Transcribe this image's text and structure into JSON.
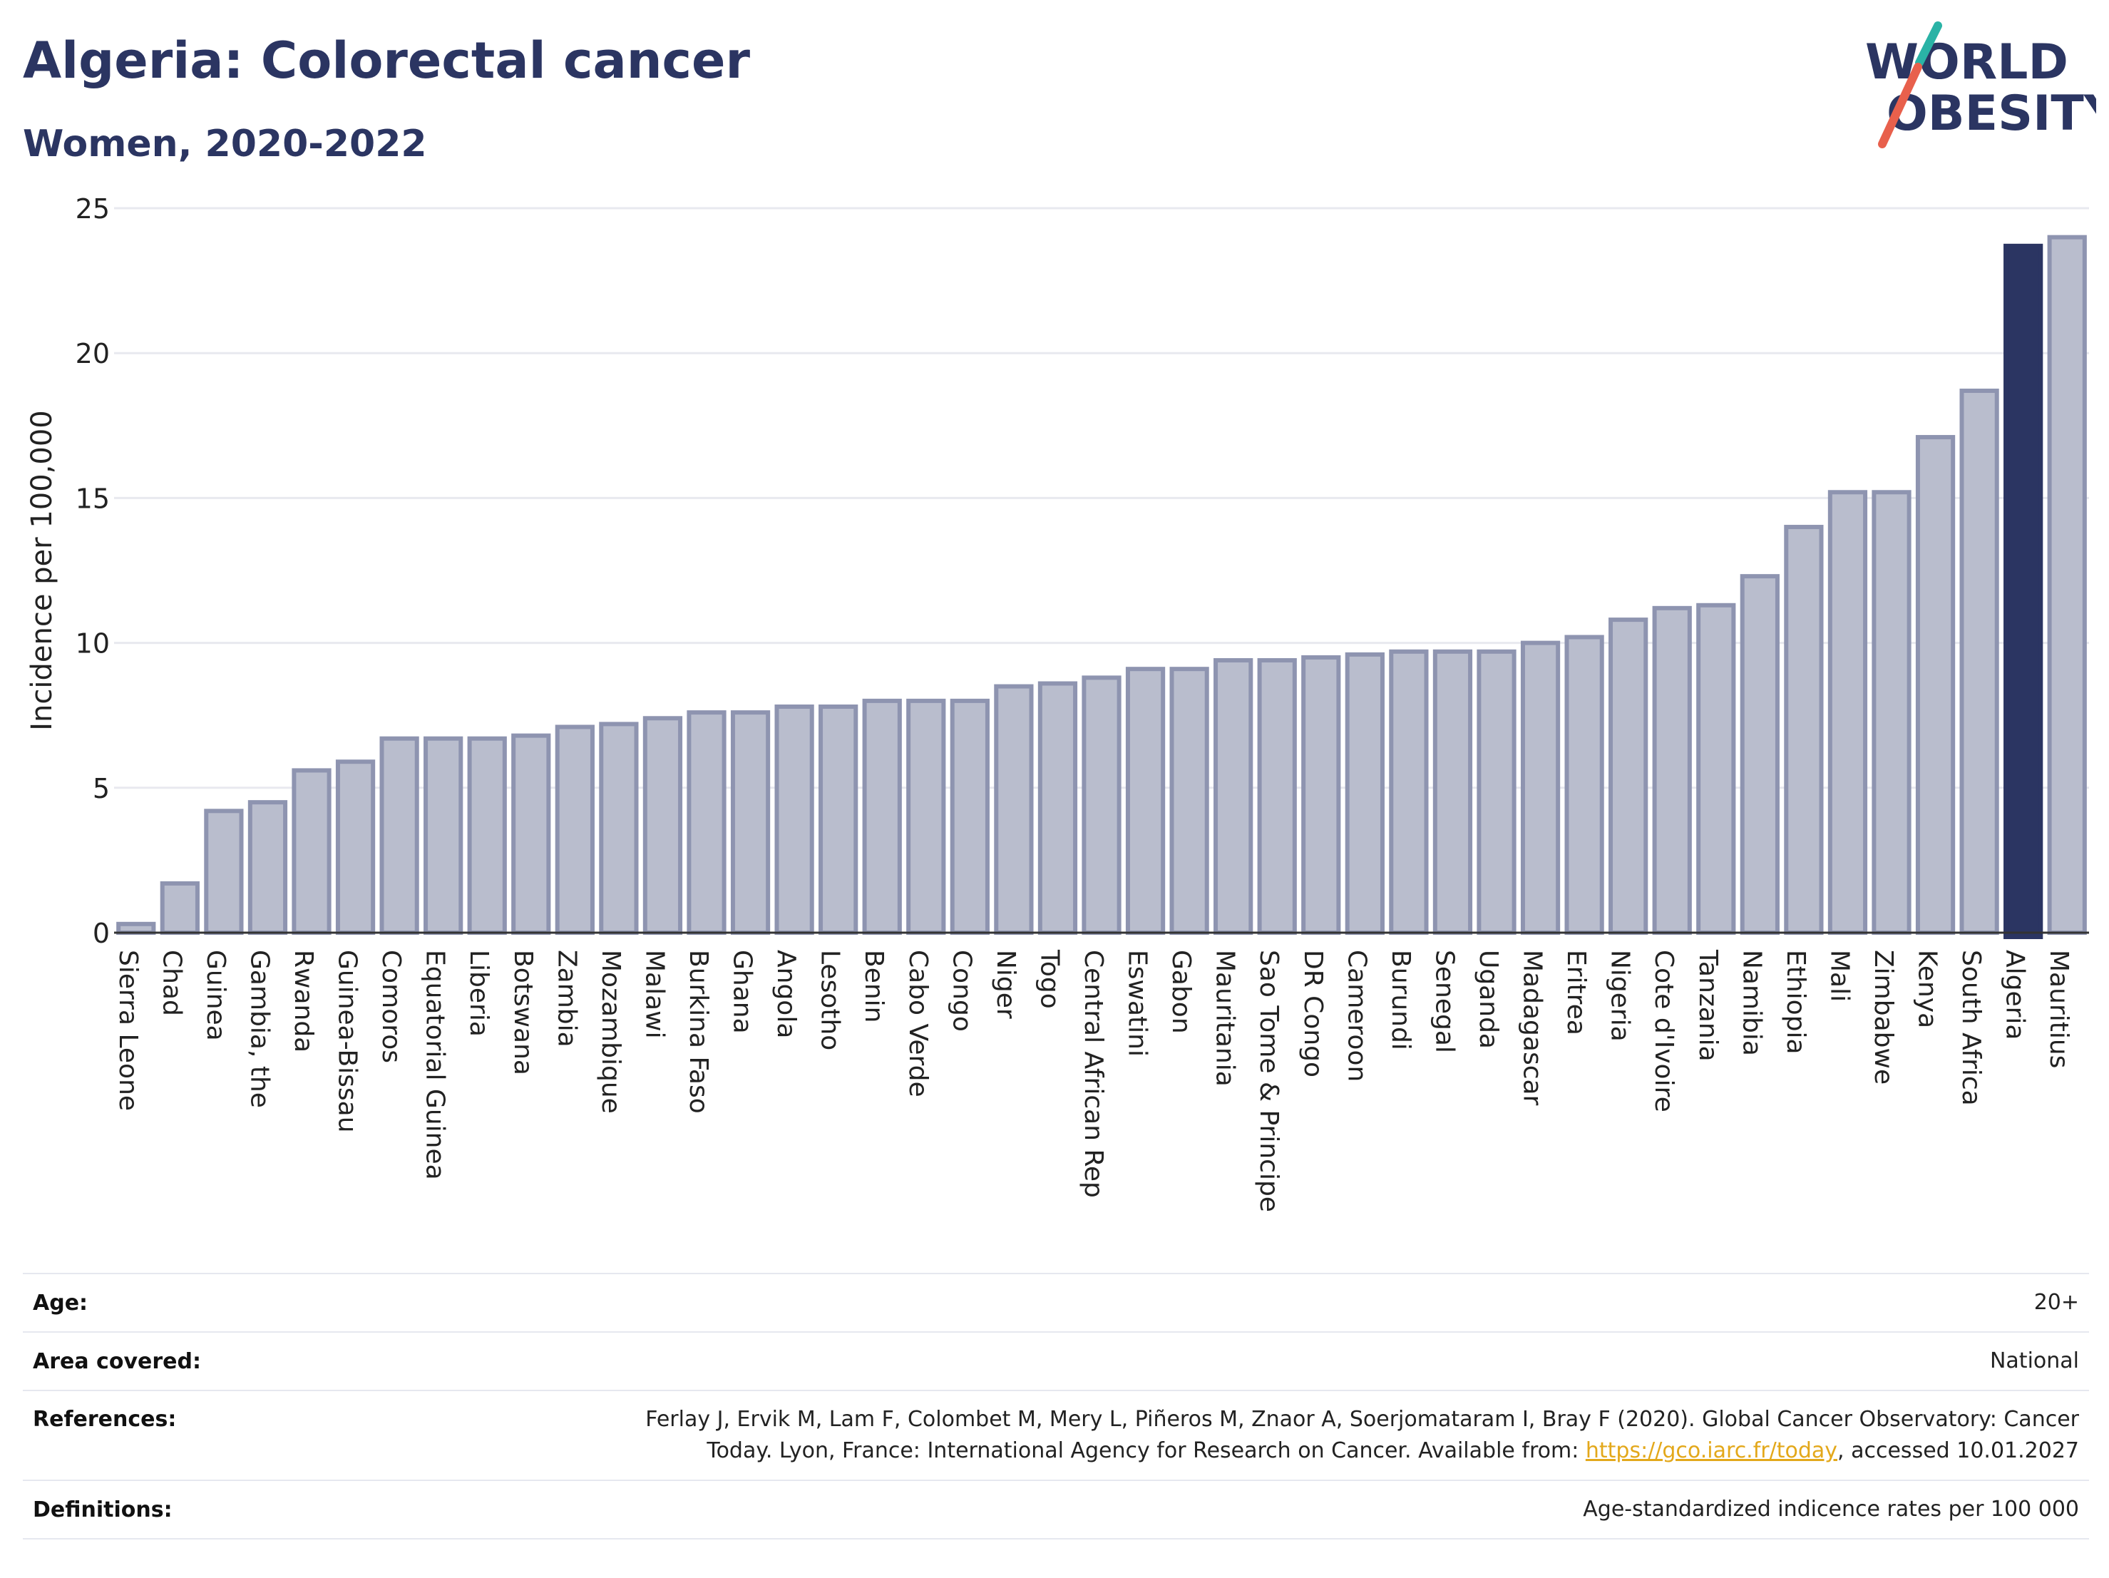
{
  "header": {
    "title": "Algeria: Colorectal cancer",
    "subtitle": "Women, 2020-2022"
  },
  "logo": {
    "line1": "WORLD",
    "line2": "OBESITY",
    "accent_teal": "#2ab3a6",
    "accent_red": "#e8604c"
  },
  "colors": {
    "highlight": "#2b3562",
    "bar_fill": "#b9bdcd",
    "bar_stroke": "#8e94b0",
    "grid": "#e8e9ef"
  },
  "chart_data": {
    "type": "bar",
    "title": "Algeria: Colorectal cancer",
    "subtitle": "Women, 2020-2022",
    "ylabel": "Incidence per 100,000",
    "xlabel": "",
    "ylim": [
      0,
      25
    ],
    "yticks": [
      0,
      5,
      10,
      15,
      20,
      25
    ],
    "grid": true,
    "highlight": "Algeria",
    "categories": [
      "Sierra Leone",
      "Chad",
      "Guinea",
      "Gambia, the",
      "Rwanda",
      "Guinea-Bissau",
      "Comoros",
      "Equatorial Guinea",
      "Liberia",
      "Botswana",
      "Zambia",
      "Mozambique",
      "Malawi",
      "Burkina Faso",
      "Ghana",
      "Angola",
      "Lesotho",
      "Benin",
      "Cabo Verde",
      "Congo",
      "Niger",
      "Togo",
      "Central African Rep",
      "Eswatini",
      "Gabon",
      "Mauritania",
      "Sao Tome & Principe",
      "DR Congo",
      "Cameroon",
      "Burundi",
      "Senegal",
      "Uganda",
      "Madagascar",
      "Eritrea",
      "Nigeria",
      "Cote d'Ivoire",
      "Tanzania",
      "Namibia",
      "Ethiopia",
      "Mali",
      "Zimbabwe",
      "Kenya",
      "South Africa",
      "Algeria",
      "Mauritius"
    ],
    "values": [
      0.3,
      1.7,
      4.2,
      4.5,
      5.6,
      5.9,
      6.7,
      6.7,
      6.7,
      6.8,
      7.1,
      7.2,
      7.4,
      7.6,
      7.6,
      7.8,
      7.8,
      8.0,
      8.0,
      8.0,
      8.5,
      8.6,
      8.8,
      9.1,
      9.1,
      9.4,
      9.4,
      9.5,
      9.6,
      9.7,
      9.7,
      9.7,
      10.0,
      10.2,
      10.8,
      11.2,
      11.3,
      12.3,
      14.0,
      15.2,
      15.2,
      17.1,
      18.7,
      23.7,
      24.0
    ]
  },
  "info": {
    "age_label": "Age:",
    "age_value": "20+",
    "area_label": "Area covered:",
    "area_value": "National",
    "references_label": "References:",
    "references_line1": "Ferlay J, Ervik M, Lam F, Colombet M, Mery L, Piñeros M, Znaor A, Soerjomataram I, Bray F (2020). Global Cancer Observatory: Cancer",
    "references_line2_prefix": "Today. Lyon, France: International Agency for Research on Cancer. Available from: ",
    "references_link": "https://gco.iarc.fr/today",
    "references_suffix": ", accessed 10.01.2027",
    "definitions_label": "Definitions:",
    "definitions_value": "Age-standardized indicence rates per 100 000"
  }
}
